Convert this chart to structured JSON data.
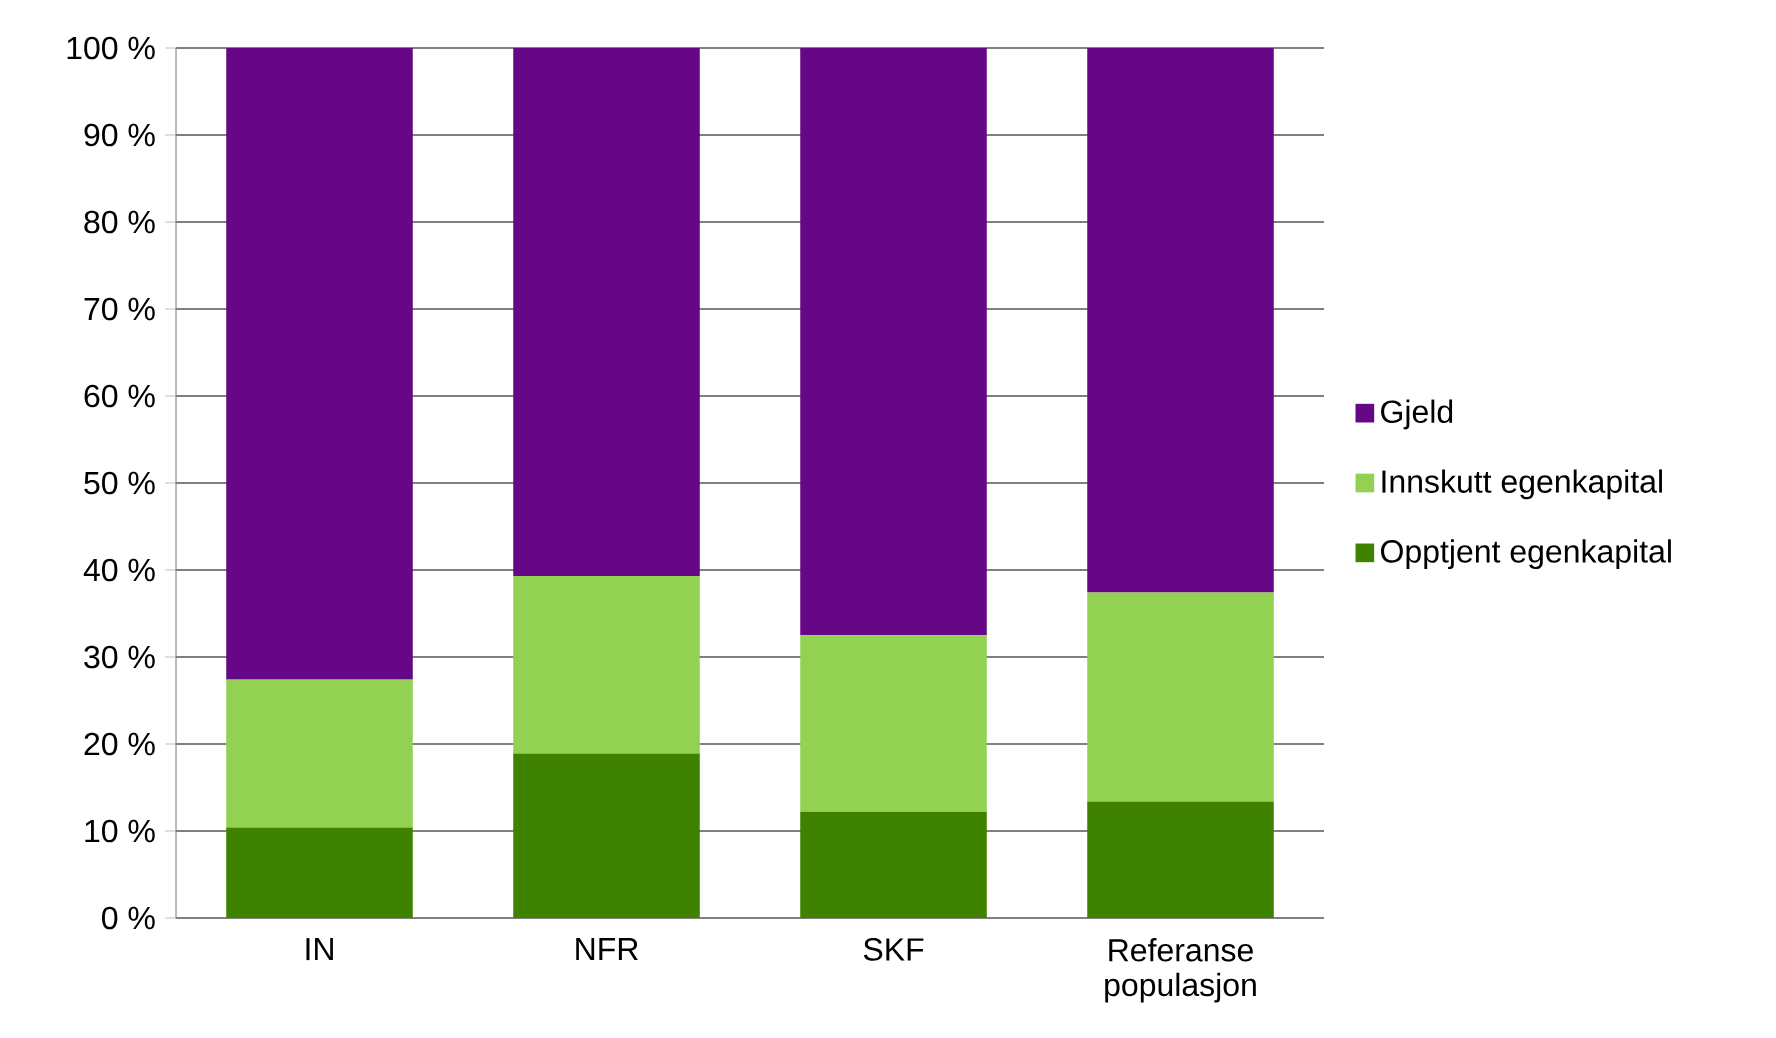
{
  "chart_data": {
    "type": "bar",
    "stacked": true,
    "categories": [
      "IN",
      "NFR",
      "SKF",
      "Referanse populasjon"
    ],
    "series": [
      {
        "name": "Opptjent egenkapital",
        "color": "#3f8200",
        "values": [
          10.4,
          18.9,
          12.2,
          13.4
        ]
      },
      {
        "name": "Innskutt egenkapital",
        "color": "#93d152",
        "values": [
          17.0,
          20.4,
          20.3,
          24.0
        ]
      },
      {
        "name": "Gjeld",
        "color": "#660787",
        "values": [
          72.6,
          60.7,
          67.5,
          62.6
        ]
      }
    ],
    "ylim": [
      0,
      100
    ],
    "yticks": [
      {
        "value": 0,
        "label": "0 %"
      },
      {
        "value": 10,
        "label": "10 %"
      },
      {
        "value": 20,
        "label": "20 %"
      },
      {
        "value": 30,
        "label": "30 %"
      },
      {
        "value": 40,
        "label": "40 %"
      },
      {
        "value": 50,
        "label": "50 %"
      },
      {
        "value": 60,
        "label": "60 %"
      },
      {
        "value": 70,
        "label": "70 %"
      },
      {
        "value": 80,
        "label": "80 %"
      },
      {
        "value": 90,
        "label": "90 %"
      },
      {
        "value": 100,
        "label": "100 %"
      }
    ],
    "grid": "y",
    "legend": "right"
  }
}
